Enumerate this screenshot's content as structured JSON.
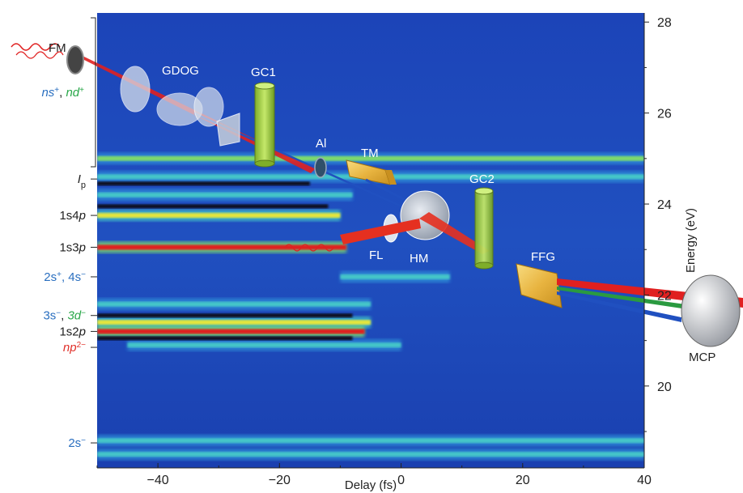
{
  "chart_data": {
    "type": "heatmap",
    "title": "",
    "xlabel": "Delay (fs)",
    "ylabel": "Energy (eV)",
    "xlim": [
      -50,
      40
    ],
    "ylim": [
      18.2,
      28.2
    ],
    "x_ticks": [
      -40,
      -20,
      0,
      20,
      40
    ],
    "x_tick_labels": [
      "−40",
      "−20",
      "0",
      "20",
      "40"
    ],
    "y_ticks": [
      20,
      22,
      24,
      26,
      28
    ],
    "y_tick_labels": [
      "20",
      "22",
      "24",
      "26",
      "28"
    ],
    "y_axis_side": "right",
    "grid": false,
    "colormap": [
      "#1a3fb0",
      "#2f8fd8",
      "#45c6c8",
      "#7fdc6a",
      "#e6e63a",
      "#f07a1e",
      "#e21a1a"
    ],
    "bands": [
      {
        "energy": 25.0,
        "x_start": -50,
        "x_end": 40,
        "level": 0.45
      },
      {
        "energy": 24.6,
        "x_start": -50,
        "x_end": 40,
        "level": 0.35
      },
      {
        "energy": 24.2,
        "x_start": -50,
        "x_end": -8,
        "level": 0.3
      },
      {
        "energy": 23.75,
        "x_start": -50,
        "x_end": -10,
        "level": 0.6
      },
      {
        "energy": 23.05,
        "x_start": -50,
        "x_end": -9,
        "level": 0.95
      },
      {
        "energy": 22.4,
        "x_start": -10,
        "x_end": 8,
        "level": 0.4
      },
      {
        "energy": 21.8,
        "x_start": -50,
        "x_end": -5,
        "level": 0.3
      },
      {
        "energy": 21.4,
        "x_start": -50,
        "x_end": -5,
        "level": 0.7
      },
      {
        "energy": 21.2,
        "x_start": -50,
        "x_end": -6,
        "level": 0.98
      },
      {
        "energy": 20.9,
        "x_start": -45,
        "x_end": 0,
        "level": 0.4
      },
      {
        "energy": 18.8,
        "x_start": -50,
        "x_end": 40,
        "level": 0.35
      },
      {
        "energy": 18.5,
        "x_start": -50,
        "x_end": 40,
        "level": 0.3
      }
    ],
    "dark_lines": [
      {
        "energy": 24.45,
        "x_start": -50,
        "x_end": -15
      },
      {
        "energy": 23.95,
        "x_start": -50,
        "x_end": -12
      },
      {
        "energy": 21.55,
        "x_start": -50,
        "x_end": -8
      },
      {
        "energy": 21.05,
        "x_start": -50,
        "x_end": -8
      }
    ],
    "left_labels": [
      {
        "energy": 24.55,
        "parts": [
          {
            "t": "I",
            "c": "#222",
            "i": true
          },
          {
            "t": "p",
            "c": "#222",
            "sub": true
          }
        ]
      },
      {
        "energy": 23.75,
        "parts": [
          {
            "t": "1s4",
            "c": "#222"
          },
          {
            "t": "p",
            "c": "#222",
            "i": true
          }
        ]
      },
      {
        "energy": 23.05,
        "parts": [
          {
            "t": "1s3",
            "c": "#222"
          },
          {
            "t": "p",
            "c": "#222",
            "i": true
          }
        ]
      },
      {
        "energy": 22.4,
        "parts": [
          {
            "t": "2s",
            "c": "#2a6fc0"
          },
          {
            "t": "+",
            "c": "#2a6fc0",
            "sup": true
          },
          {
            "t": ", 4s",
            "c": "#2a6fc0"
          },
          {
            "t": "−",
            "c": "#2a6fc0",
            "sup": true
          }
        ]
      },
      {
        "energy": 21.55,
        "parts": [
          {
            "t": "3s",
            "c": "#2a6fc0"
          },
          {
            "t": "−",
            "c": "#2a6fc0",
            "sup": true
          },
          {
            "t": ", ",
            "c": "#222"
          },
          {
            "t": "3d",
            "c": "#2aa84a",
            "i": true
          },
          {
            "t": "−",
            "c": "#2aa84a",
            "sup": true
          }
        ]
      },
      {
        "energy": 21.2,
        "parts": [
          {
            "t": "1s2",
            "c": "#222"
          },
          {
            "t": "p",
            "c": "#222",
            "i": true
          }
        ]
      },
      {
        "energy": 20.85,
        "parts": [
          {
            "t": "np",
            "c": "#e0302a",
            "i": true
          },
          {
            "t": "2−",
            "c": "#e0302a",
            "sup": true
          }
        ]
      },
      {
        "energy": 18.75,
        "parts": [
          {
            "t": "2s",
            "c": "#2a6fc0"
          },
          {
            "t": "−",
            "c": "#2a6fc0",
            "sup": true
          }
        ]
      }
    ],
    "bracket_label": [
      {
        "t": "ns",
        "c": "#2a6fc0",
        "i": true
      },
      {
        "t": "+",
        "c": "#2a6fc0",
        "sup": true
      },
      {
        "t": ", ",
        "c": "#222"
      },
      {
        "t": "nd",
        "c": "#2aa84a",
        "i": true
      },
      {
        "t": "+",
        "c": "#2aa84a",
        "sup": true
      }
    ]
  },
  "components": {
    "fm": "FM",
    "gdog": "GDOG",
    "gc1": "GC1",
    "al": "Al",
    "tm": "TM",
    "gc2": "GC2",
    "fl": "FL",
    "hm": "HM",
    "ffg": "FFG",
    "mcp": "MCP"
  },
  "colors": {
    "red_beam": "#e02020",
    "blue_beam": "#2050c0",
    "green_beam": "#2a9a40",
    "gas_cell": "#9cc83a",
    "filter": "#e8c040"
  }
}
